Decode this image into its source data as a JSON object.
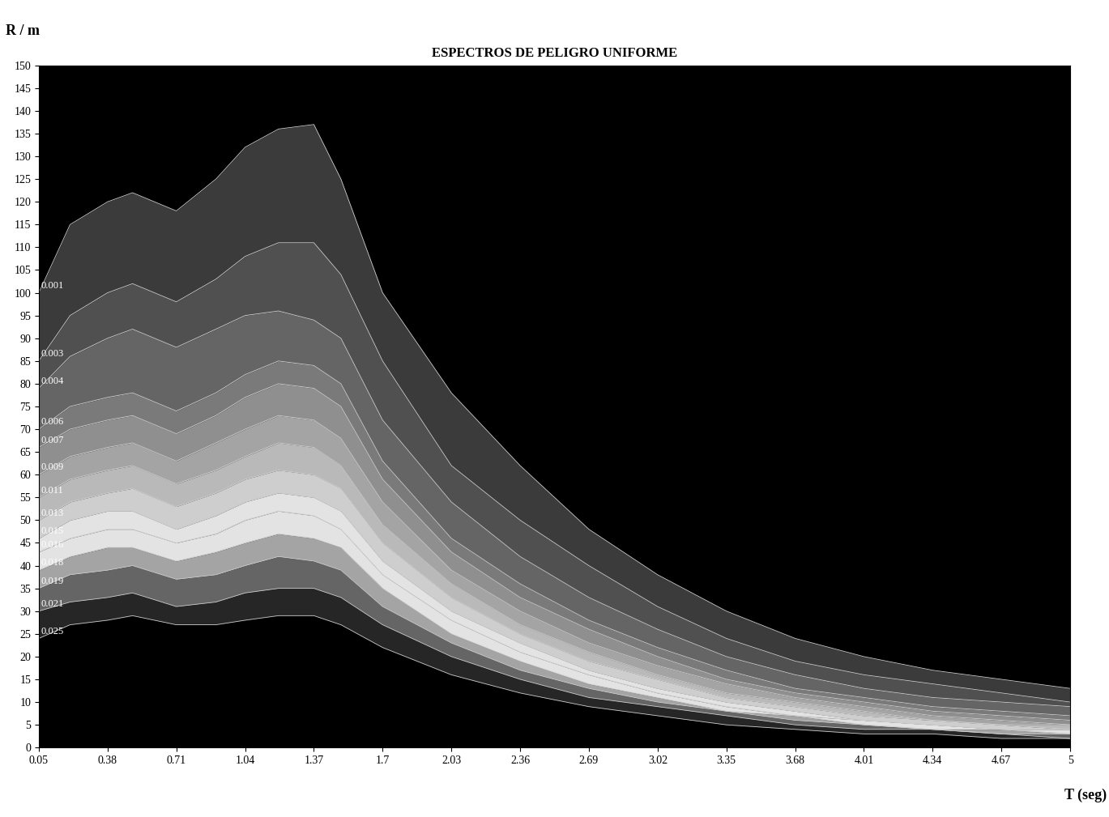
{
  "chart_data": {
    "type": "contour",
    "title": "ESPECTROS DE PELIGRO UNIFORME",
    "x_label": "T (seg)",
    "y_label": "R / m",
    "x": [
      0.05,
      0.2,
      0.38,
      0.5,
      0.71,
      0.9,
      1.04,
      1.2,
      1.37,
      1.5,
      1.7,
      2.03,
      2.36,
      2.69,
      3.02,
      3.35,
      3.68,
      4.01,
      4.34,
      4.67,
      5
    ],
    "series": [
      {
        "name": "0.001",
        "values": [
          100,
          115,
          120,
          122,
          118,
          125,
          132,
          136,
          137,
          125,
          100,
          78,
          62,
          48,
          38,
          30,
          24,
          20,
          17,
          15,
          13
        ]
      },
      {
        "name": "0.003",
        "values": [
          85,
          95,
          100,
          102,
          98,
          103,
          108,
          111,
          111,
          104,
          85,
          62,
          50,
          40,
          31,
          24,
          19,
          16,
          14,
          12,
          10
        ]
      },
      {
        "name": "0.004",
        "values": [
          79,
          86,
          90,
          92,
          88,
          92,
          95,
          96,
          94,
          90,
          72,
          54,
          42,
          33,
          26,
          20,
          16,
          13,
          11,
          10,
          9
        ]
      },
      {
        "name": "0.006",
        "values": [
          70,
          75,
          77,
          78,
          74,
          78,
          82,
          85,
          84,
          80,
          63,
          46,
          36,
          28,
          22,
          17,
          13,
          11,
          9,
          8,
          7
        ]
      },
      {
        "name": "0.007",
        "values": [
          66,
          70,
          72,
          73,
          69,
          73,
          77,
          80,
          79,
          75,
          59,
          43,
          33,
          26,
          20,
          15,
          12,
          10,
          8,
          7,
          6
        ]
      },
      {
        "name": "0.009",
        "values": [
          60,
          64,
          66,
          67,
          63,
          67,
          70,
          73,
          72,
          68,
          54,
          39,
          30,
          23,
          18,
          14,
          11,
          9,
          7,
          6,
          5
        ]
      },
      {
        "name": "0.011",
        "values": [
          55,
          59,
          61,
          62,
          58,
          61,
          64,
          67,
          66,
          62,
          49,
          36,
          27,
          21,
          16,
          12,
          10,
          8,
          6,
          5,
          5
        ]
      },
      {
        "name": "0.013",
        "values": [
          50,
          54,
          56,
          57,
          53,
          56,
          59,
          61,
          60,
          57,
          45,
          33,
          25,
          19,
          15,
          11,
          9,
          7,
          6,
          5,
          4
        ]
      },
      {
        "name": "0.015",
        "values": [
          46,
          50,
          52,
          52,
          48,
          51,
          54,
          56,
          55,
          52,
          41,
          30,
          23,
          17,
          13,
          10,
          8,
          6,
          5,
          4,
          4
        ]
      },
      {
        "name": "0.016",
        "values": [
          43,
          46,
          48,
          48,
          45,
          47,
          50,
          52,
          51,
          48,
          38,
          28,
          21,
          16,
          12,
          9,
          7,
          6,
          5,
          4,
          3
        ]
      },
      {
        "name": "0.018",
        "values": [
          39,
          42,
          44,
          44,
          41,
          43,
          45,
          47,
          46,
          44,
          35,
          25,
          19,
          14,
          11,
          8,
          7,
          5,
          4,
          4,
          3
        ]
      },
      {
        "name": "0.019",
        "values": [
          35,
          38,
          39,
          40,
          37,
          38,
          40,
          42,
          41,
          39,
          31,
          23,
          17,
          13,
          10,
          8,
          6,
          5,
          4,
          3,
          3
        ]
      },
      {
        "name": "0.021",
        "values": [
          30,
          32,
          33,
          34,
          31,
          32,
          34,
          35,
          35,
          33,
          27,
          20,
          15,
          11,
          9,
          7,
          5,
          4,
          4,
          3,
          2
        ]
      },
      {
        "name": "0.025",
        "values": [
          24,
          27,
          28,
          29,
          27,
          27,
          28,
          29,
          29,
          27,
          22,
          16,
          12,
          9,
          7,
          5,
          4,
          3,
          3,
          2,
          2
        ]
      }
    ],
    "xlim": [
      0.05,
      5
    ],
    "ylim": [
      0,
      150
    ],
    "xticks": [
      0.05,
      0.38,
      0.71,
      1.04,
      1.37,
      1.7,
      2.03,
      2.36,
      2.69,
      3.02,
      3.35,
      3.68,
      4.01,
      4.34,
      4.67,
      5
    ],
    "yticks": [
      0,
      5,
      10,
      15,
      20,
      25,
      30,
      35,
      40,
      45,
      50,
      55,
      60,
      65,
      70,
      75,
      80,
      85,
      90,
      95,
      100,
      105,
      110,
      115,
      120,
      125,
      130,
      135,
      140,
      145,
      150
    ],
    "grid": false
  }
}
